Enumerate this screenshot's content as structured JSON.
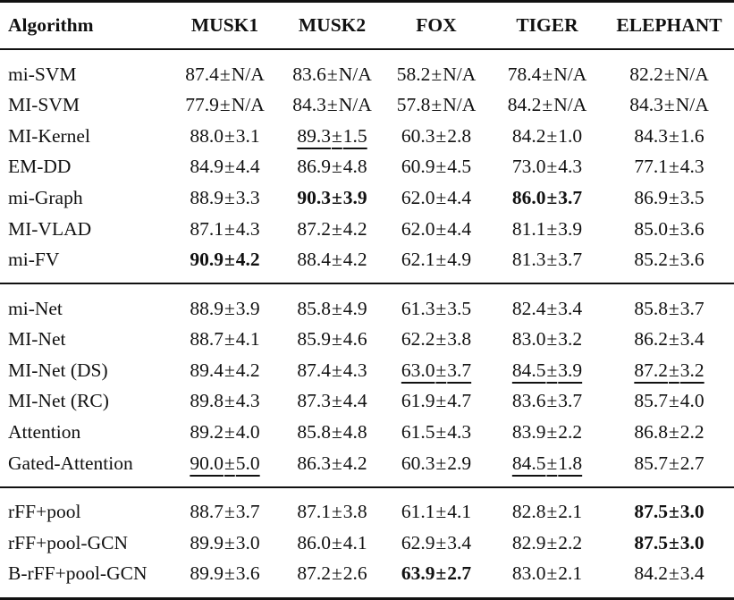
{
  "table": {
    "columns": [
      "Algorithm",
      "MUSK1",
      "MUSK2",
      "FOX",
      "TIGER",
      "ELEPHANT"
    ],
    "groups": [
      {
        "rows": [
          {
            "algorithm": "mi-SVM",
            "cells": [
              {
                "mean": "87.4",
                "std": "N/A",
                "bold": false,
                "underline": false
              },
              {
                "mean": "83.6",
                "std": "N/A",
                "bold": false,
                "underline": false
              },
              {
                "mean": "58.2",
                "std": "N/A",
                "bold": false,
                "underline": false
              },
              {
                "mean": "78.4",
                "std": "N/A",
                "bold": false,
                "underline": false
              },
              {
                "mean": "82.2",
                "std": "N/A",
                "bold": false,
                "underline": false
              }
            ]
          },
          {
            "algorithm": "MI-SVM",
            "cells": [
              {
                "mean": "77.9",
                "std": "N/A",
                "bold": false,
                "underline": false
              },
              {
                "mean": "84.3",
                "std": "N/A",
                "bold": false,
                "underline": false
              },
              {
                "mean": "57.8",
                "std": "N/A",
                "bold": false,
                "underline": false
              },
              {
                "mean": "84.2",
                "std": "N/A",
                "bold": false,
                "underline": false
              },
              {
                "mean": "84.3",
                "std": "N/A",
                "bold": false,
                "underline": false
              }
            ]
          },
          {
            "algorithm": "MI-Kernel",
            "cells": [
              {
                "mean": "88.0",
                "std": "3.1",
                "bold": false,
                "underline": false
              },
              {
                "mean": "89.3",
                "std": "1.5",
                "bold": false,
                "underline": true
              },
              {
                "mean": "60.3",
                "std": "2.8",
                "bold": false,
                "underline": false
              },
              {
                "mean": "84.2",
                "std": "1.0",
                "bold": false,
                "underline": false
              },
              {
                "mean": "84.3",
                "std": "1.6",
                "bold": false,
                "underline": false
              }
            ]
          },
          {
            "algorithm": "EM-DD",
            "cells": [
              {
                "mean": "84.9",
                "std": "4.4",
                "bold": false,
                "underline": false
              },
              {
                "mean": "86.9",
                "std": "4.8",
                "bold": false,
                "underline": false
              },
              {
                "mean": "60.9",
                "std": "4.5",
                "bold": false,
                "underline": false
              },
              {
                "mean": "73.0",
                "std": "4.3",
                "bold": false,
                "underline": false
              },
              {
                "mean": "77.1",
                "std": "4.3",
                "bold": false,
                "underline": false
              }
            ]
          },
          {
            "algorithm": "mi-Graph",
            "cells": [
              {
                "mean": "88.9",
                "std": "3.3",
                "bold": false,
                "underline": false
              },
              {
                "mean": "90.3",
                "std": "3.9",
                "bold": true,
                "underline": false
              },
              {
                "mean": "62.0",
                "std": "4.4",
                "bold": false,
                "underline": false
              },
              {
                "mean": "86.0",
                "std": "3.7",
                "bold": true,
                "underline": false
              },
              {
                "mean": "86.9",
                "std": "3.5",
                "bold": false,
                "underline": false
              }
            ]
          },
          {
            "algorithm": "MI-VLAD",
            "cells": [
              {
                "mean": "87.1",
                "std": "4.3",
                "bold": false,
                "underline": false
              },
              {
                "mean": "87.2",
                "std": "4.2",
                "bold": false,
                "underline": false
              },
              {
                "mean": "62.0",
                "std": "4.4",
                "bold": false,
                "underline": false
              },
              {
                "mean": "81.1",
                "std": "3.9",
                "bold": false,
                "underline": false
              },
              {
                "mean": "85.0",
                "std": "3.6",
                "bold": false,
                "underline": false
              }
            ]
          },
          {
            "algorithm": "mi-FV",
            "cells": [
              {
                "mean": "90.9",
                "std": "4.2",
                "bold": true,
                "underline": false
              },
              {
                "mean": "88.4",
                "std": "4.2",
                "bold": false,
                "underline": false
              },
              {
                "mean": "62.1",
                "std": "4.9",
                "bold": false,
                "underline": false
              },
              {
                "mean": "81.3",
                "std": "3.7",
                "bold": false,
                "underline": false
              },
              {
                "mean": "85.2",
                "std": "3.6",
                "bold": false,
                "underline": false
              }
            ]
          }
        ]
      },
      {
        "rows": [
          {
            "algorithm": "mi-Net",
            "cells": [
              {
                "mean": "88.9",
                "std": "3.9",
                "bold": false,
                "underline": false
              },
              {
                "mean": "85.8",
                "std": "4.9",
                "bold": false,
                "underline": false
              },
              {
                "mean": "61.3",
                "std": "3.5",
                "bold": false,
                "underline": false
              },
              {
                "mean": "82.4",
                "std": "3.4",
                "bold": false,
                "underline": false
              },
              {
                "mean": "85.8",
                "std": "3.7",
                "bold": false,
                "underline": false
              }
            ]
          },
          {
            "algorithm": "MI-Net",
            "cells": [
              {
                "mean": "88.7",
                "std": "4.1",
                "bold": false,
                "underline": false
              },
              {
                "mean": "85.9",
                "std": "4.6",
                "bold": false,
                "underline": false
              },
              {
                "mean": "62.2",
                "std": "3.8",
                "bold": false,
                "underline": false
              },
              {
                "mean": "83.0",
                "std": "3.2",
                "bold": false,
                "underline": false
              },
              {
                "mean": "86.2",
                "std": "3.4",
                "bold": false,
                "underline": false
              }
            ]
          },
          {
            "algorithm": "MI-Net (DS)",
            "cells": [
              {
                "mean": "89.4",
                "std": "4.2",
                "bold": false,
                "underline": false
              },
              {
                "mean": "87.4",
                "std": "4.3",
                "bold": false,
                "underline": false
              },
              {
                "mean": "63.0",
                "std": "3.7",
                "bold": false,
                "underline": true
              },
              {
                "mean": "84.5",
                "std": "3.9",
                "bold": false,
                "underline": true
              },
              {
                "mean": "87.2",
                "std": "3.2",
                "bold": false,
                "underline": true
              }
            ]
          },
          {
            "algorithm": "MI-Net (RC)",
            "cells": [
              {
                "mean": "89.8",
                "std": "4.3",
                "bold": false,
                "underline": false
              },
              {
                "mean": "87.3",
                "std": "4.4",
                "bold": false,
                "underline": false
              },
              {
                "mean": "61.9",
                "std": "4.7",
                "bold": false,
                "underline": false
              },
              {
                "mean": "83.6",
                "std": "3.7",
                "bold": false,
                "underline": false
              },
              {
                "mean": "85.7",
                "std": "4.0",
                "bold": false,
                "underline": false
              }
            ]
          },
          {
            "algorithm": "Attention",
            "cells": [
              {
                "mean": "89.2",
                "std": "4.0",
                "bold": false,
                "underline": false
              },
              {
                "mean": "85.8",
                "std": "4.8",
                "bold": false,
                "underline": false
              },
              {
                "mean": "61.5",
                "std": "4.3",
                "bold": false,
                "underline": false
              },
              {
                "mean": "83.9",
                "std": "2.2",
                "bold": false,
                "underline": false
              },
              {
                "mean": "86.8",
                "std": "2.2",
                "bold": false,
                "underline": false
              }
            ]
          },
          {
            "algorithm": "Gated-Attention",
            "cells": [
              {
                "mean": "90.0",
                "std": "5.0",
                "bold": false,
                "underline": true
              },
              {
                "mean": "86.3",
                "std": "4.2",
                "bold": false,
                "underline": false
              },
              {
                "mean": "60.3",
                "std": "2.9",
                "bold": false,
                "underline": false
              },
              {
                "mean": "84.5",
                "std": "1.8",
                "bold": false,
                "underline": true
              },
              {
                "mean": "85.7",
                "std": "2.7",
                "bold": false,
                "underline": false
              }
            ]
          }
        ]
      },
      {
        "rows": [
          {
            "algorithm": "rFF+pool",
            "cells": [
              {
                "mean": "88.7",
                "std": "3.7",
                "bold": false,
                "underline": false
              },
              {
                "mean": "87.1",
                "std": "3.8",
                "bold": false,
                "underline": false
              },
              {
                "mean": "61.1",
                "std": "4.1",
                "bold": false,
                "underline": false
              },
              {
                "mean": "82.8",
                "std": "2.1",
                "bold": false,
                "underline": false
              },
              {
                "mean": "87.5",
                "std": "3.0",
                "bold": true,
                "underline": false
              }
            ]
          },
          {
            "algorithm": "rFF+pool-GCN",
            "cells": [
              {
                "mean": "89.9",
                "std": "3.0",
                "bold": false,
                "underline": false
              },
              {
                "mean": "86.0",
                "std": "4.1",
                "bold": false,
                "underline": false
              },
              {
                "mean": "62.9",
                "std": "3.4",
                "bold": false,
                "underline": false
              },
              {
                "mean": "82.9",
                "std": "2.2",
                "bold": false,
                "underline": false
              },
              {
                "mean": "87.5",
                "std": "3.0",
                "bold": true,
                "underline": false
              }
            ]
          },
          {
            "algorithm": "B-rFF+pool-GCN",
            "cells": [
              {
                "mean": "89.9",
                "std": "3.6",
                "bold": false,
                "underline": false
              },
              {
                "mean": "87.2",
                "std": "2.6",
                "bold": false,
                "underline": false
              },
              {
                "mean": "63.9",
                "std": "2.7",
                "bold": true,
                "underline": false
              },
              {
                "mean": "83.0",
                "std": "2.1",
                "bold": false,
                "underline": false
              },
              {
                "mean": "84.2",
                "std": "3.4",
                "bold": false,
                "underline": false
              }
            ]
          }
        ]
      }
    ],
    "pm_symbol": "±"
  }
}
